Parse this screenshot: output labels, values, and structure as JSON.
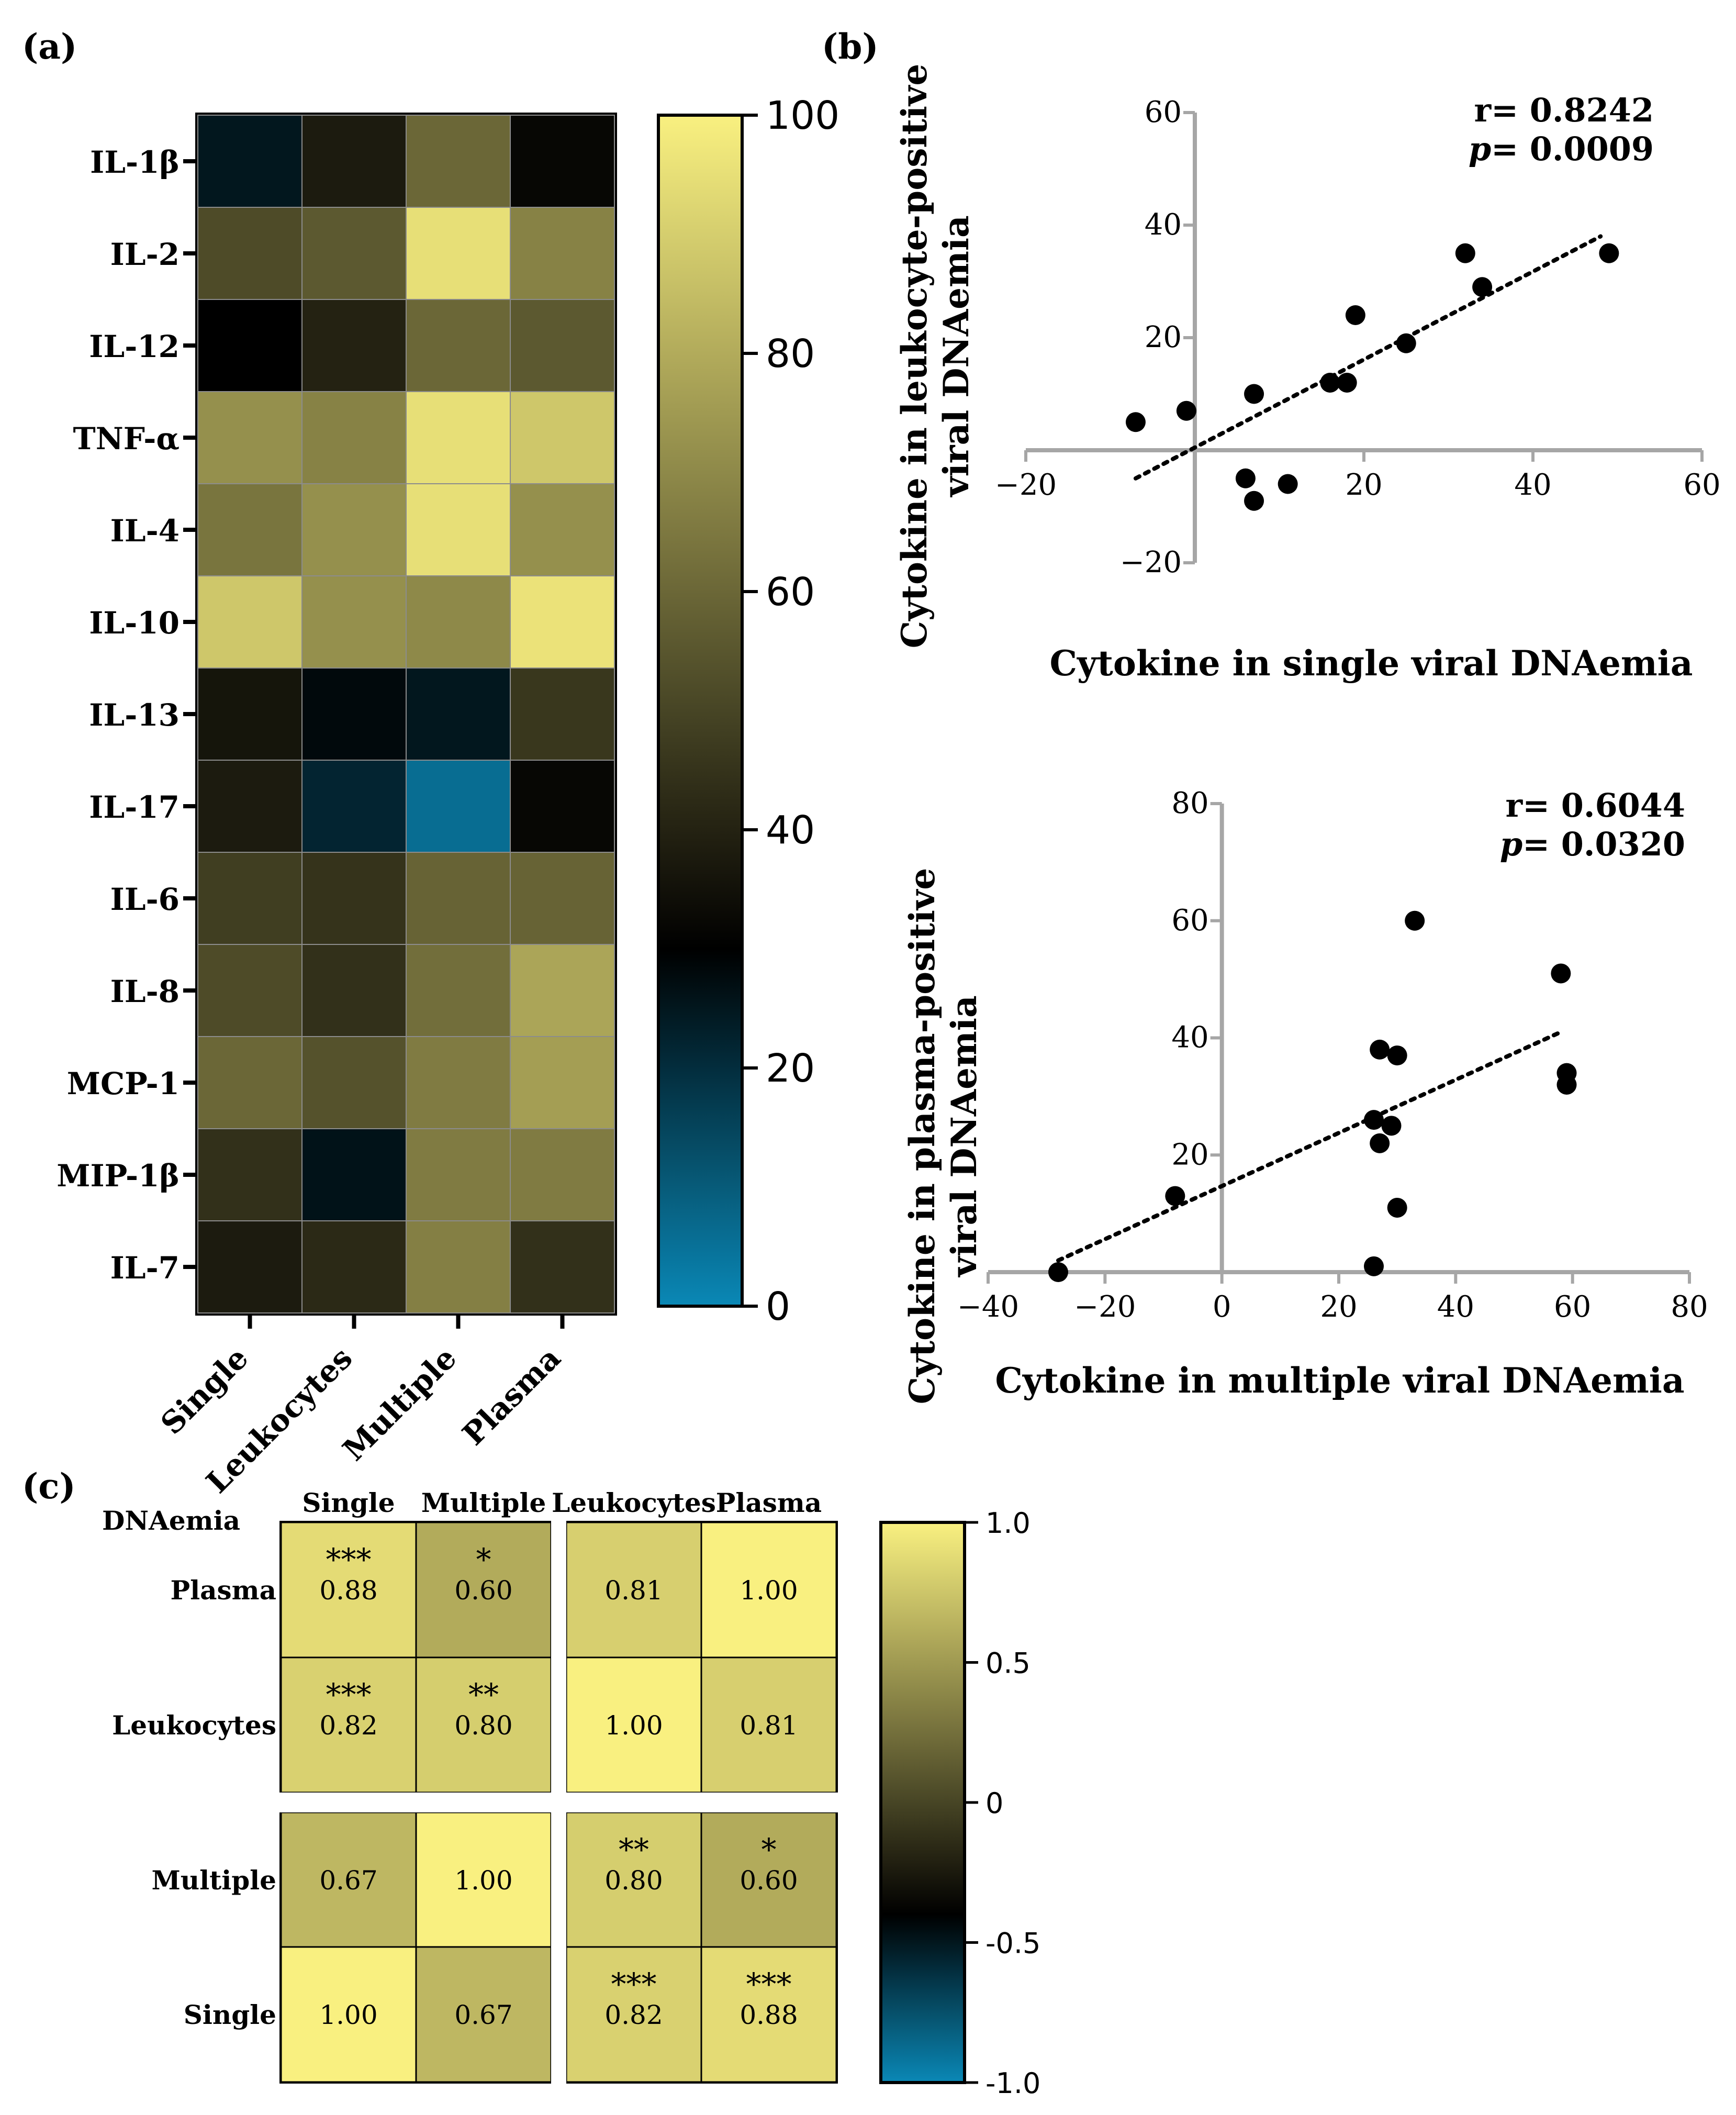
{
  "panel_labels": {
    "a": "(a)",
    "b": "(b)",
    "c": "(c)"
  },
  "colors": {
    "colormap": [
      "#0a88b6",
      "#000000",
      "#f9f080"
    ],
    "axis_gray": "#a6a6a6",
    "point": "#000000"
  },
  "chart_data": [
    {
      "id": "a",
      "type": "heatmap",
      "title": "",
      "rows": [
        "IL-1β",
        "IL-2",
        "IL-12",
        "TNF-α",
        "IL-4",
        "IL-10",
        "IL-13",
        "IL-17",
        "IL-6",
        "IL-8",
        "MCP-1",
        "MIP-1β",
        "IL-7"
      ],
      "columns": [
        "Single",
        "Leukocytes",
        "Multiple",
        "Plasma"
      ],
      "values": [
        [
          25,
          38,
          60,
          32
        ],
        [
          52,
          56,
          95,
          68
        ],
        [
          30,
          40,
          60,
          56
        ],
        [
          72,
          68,
          95,
          88
        ],
        [
          64,
          72,
          95,
          72
        ],
        [
          88,
          72,
          70,
          96
        ],
        [
          36,
          28,
          25,
          46
        ],
        [
          38,
          22,
          6,
          32
        ],
        [
          48,
          45,
          59,
          59
        ],
        [
          52,
          44,
          62,
          78
        ],
        [
          60,
          54,
          66,
          76
        ],
        [
          44,
          26,
          66,
          66
        ],
        [
          38,
          42,
          67,
          44
        ]
      ],
      "colorbar": {
        "min": 0,
        "max": 100,
        "ticks": [
          0,
          20,
          40,
          60,
          80,
          100
        ]
      }
    },
    {
      "id": "b-top",
      "type": "scatter",
      "xlabel": "Cytokine in single viral DNAemia",
      "ylabel": [
        "Cytokine in leukocyte-positive",
        "viral DNAemia"
      ],
      "xlim": [
        -20,
        60
      ],
      "ylim": [
        -20,
        60
      ],
      "xticks": [
        -20,
        20,
        40,
        60
      ],
      "yticks": [
        -20,
        20,
        40,
        60
      ],
      "tick_labels_x": [
        "−20",
        "20",
        "40",
        "60"
      ],
      "tick_labels_y": [
        "−20",
        "20",
        "40",
        "60"
      ],
      "points": [
        [
          -7,
          5
        ],
        [
          -1,
          7
        ],
        [
          7,
          10
        ],
        [
          6,
          -5
        ],
        [
          7,
          -9
        ],
        [
          11,
          -6
        ],
        [
          16,
          12
        ],
        [
          18,
          12
        ],
        [
          19,
          24
        ],
        [
          25,
          19
        ],
        [
          32,
          35
        ],
        [
          34,
          29
        ],
        [
          49,
          35
        ]
      ],
      "trendline": {
        "x": [
          -7,
          48
        ],
        "y": [
          -5,
          38
        ]
      },
      "stats": {
        "r_label": "r= ",
        "r": "0.8242",
        "p_label": "p",
        "p_eq": "= ",
        "p": "0.0009"
      }
    },
    {
      "id": "b-bottom",
      "type": "scatter",
      "xlabel": "Cytokine in multiple viral DNAemia",
      "ylabel": [
        "Cytokine in plasma-positive",
        "viral DNAemia"
      ],
      "xlim": [
        -40,
        80
      ],
      "ylim": [
        0,
        80
      ],
      "xticks": [
        -40,
        -20,
        0,
        20,
        40,
        60,
        80
      ],
      "yticks": [
        20,
        40,
        60,
        80
      ],
      "tick_labels_x": [
        "−40",
        "−20",
        "0",
        "20",
        "40",
        "60",
        "80"
      ],
      "tick_labels_y": [
        "20",
        "40",
        "60",
        "80"
      ],
      "points": [
        [
          -28,
          0
        ],
        [
          -8,
          13
        ],
        [
          26,
          1
        ],
        [
          26,
          26
        ],
        [
          27,
          38
        ],
        [
          27,
          22
        ],
        [
          29,
          25
        ],
        [
          30,
          37
        ],
        [
          30,
          11
        ],
        [
          33,
          60
        ],
        [
          58,
          51
        ],
        [
          59,
          34
        ],
        [
          59,
          32
        ]
      ],
      "trendline": {
        "x": [
          -28,
          58
        ],
        "y": [
          2,
          41
        ]
      },
      "stats": {
        "r_label": "r= ",
        "r": "0.6044",
        "p_label": "p",
        "p_eq": "= ",
        "p": "0.0320"
      }
    },
    {
      "id": "c",
      "type": "heatmap",
      "corner_label": "DNAemia",
      "columns": [
        "Single",
        "Multiple",
        "Leukocytes",
        "Plasma"
      ],
      "rows": [
        "Plasma",
        "Leukocytes",
        "Multiple",
        "Single"
      ],
      "values": [
        [
          0.88,
          0.6,
          0.81,
          1.0
        ],
        [
          0.82,
          0.8,
          1.0,
          0.81
        ],
        [
          0.67,
          1.0,
          0.8,
          0.6
        ],
        [
          1.0,
          0.67,
          0.82,
          0.88
        ]
      ],
      "labels": [
        [
          "0.88",
          "0.60",
          "0.81",
          "1.00"
        ],
        [
          "0.82",
          "0.80",
          "1.00",
          "0.81"
        ],
        [
          "0.67",
          "1.00",
          "0.80",
          "0.60"
        ],
        [
          "1.00",
          "0.67",
          "0.82",
          "0.88"
        ]
      ],
      "significance": [
        [
          "***",
          "*",
          "",
          ""
        ],
        [
          "***",
          "**",
          "",
          ""
        ],
        [
          "",
          "",
          "**",
          "*"
        ],
        [
          "",
          "",
          "***",
          "***"
        ]
      ],
      "colorbar": {
        "min": -1.0,
        "max": 1.0,
        "ticks": [
          -1.0,
          -0.5,
          0,
          0.5,
          1.0
        ],
        "tick_labels": [
          "-1.0",
          "-0.5",
          "0",
          "0.5",
          "1.0"
        ]
      }
    }
  ]
}
